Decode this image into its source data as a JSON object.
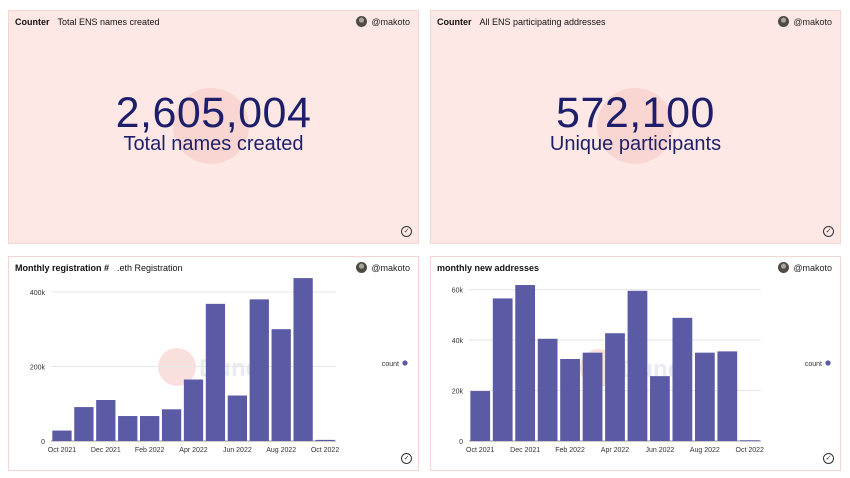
{
  "panels": {
    "counter1": {
      "kind": "Counter",
      "title": "Total ENS names created",
      "author": "@makoto",
      "value": "2,605,004",
      "label": "Total names created"
    },
    "counter2": {
      "kind": "Counter",
      "title": "All ENS participating addresses",
      "author": "@makoto",
      "value": "572,100",
      "label": "Unique participants"
    },
    "chart1": {
      "title": "Monthly registration #",
      "subtitle": ".eth Registration",
      "author": "@makoto",
      "watermark": "Dune"
    },
    "chart2": {
      "title": "monthly new addresses",
      "subtitle": "",
      "author": "@makoto",
      "watermark": "Dune"
    }
  },
  "icons": {
    "author": "avatar",
    "status": "check-circle-icon"
  },
  "colors": {
    "bar": "#5b5aa4",
    "counter_bg": "#fde8e6",
    "number": "#1d1f6b"
  },
  "chart_data": [
    {
      "type": "bar",
      "title": "Monthly registration #",
      "subtitle": ".eth Registration",
      "x": [
        "Oct 2021",
        "Nov 2021",
        "Dec 2021",
        "Jan 2022",
        "Feb 2022",
        "Mar 2022",
        "Apr 2022",
        "May 2022",
        "Jun 2022",
        "Jul 2022",
        "Aug 2022",
        "Sep 2022",
        "Oct 2022"
      ],
      "x_tick_labels": [
        "Oct 2021",
        "Dec 2021",
        "Feb 2022",
        "Apr 2022",
        "Jun 2022",
        "Aug 2022",
        "Oct 2022"
      ],
      "series": [
        {
          "name": "count",
          "values": [
            28000,
            91000,
            110000,
            67000,
            67000,
            85000,
            165000,
            368000,
            122000,
            380000,
            300000,
            437000,
            3000
          ]
        }
      ],
      "y_ticks": [
        0,
        200000,
        400000
      ],
      "y_tick_labels": [
        "0",
        "200k",
        "400k"
      ],
      "ylim": [
        0,
        440000
      ],
      "legend": "right",
      "grid": true
    },
    {
      "type": "bar",
      "title": "monthly new addresses",
      "x": [
        "Oct 2021",
        "Nov 2021",
        "Dec 2021",
        "Jan 2022",
        "Feb 2022",
        "Mar 2022",
        "Apr 2022",
        "May 2022",
        "Jun 2022",
        "Jul 2022",
        "Aug 2022",
        "Sep 2022",
        "Oct 2022"
      ],
      "x_tick_labels": [
        "Oct 2021",
        "Dec 2021",
        "Feb 2022",
        "Apr 2022",
        "Jun 2022",
        "Aug 2022",
        "Oct 2022"
      ],
      "series": [
        {
          "name": "count",
          "values": [
            19800,
            56500,
            61800,
            40500,
            32500,
            35000,
            42700,
            59500,
            25700,
            48800,
            35000,
            35500,
            300
          ]
        }
      ],
      "y_ticks": [
        0,
        20000,
        40000,
        60000
      ],
      "y_tick_labels": [
        "0",
        "20k",
        "40k",
        "60k"
      ],
      "ylim": [
        0,
        63000
      ],
      "legend": "right",
      "grid": true
    }
  ]
}
